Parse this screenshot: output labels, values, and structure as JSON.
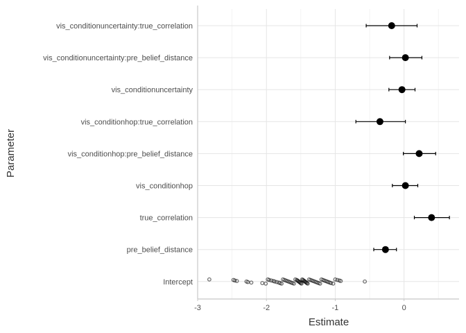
{
  "chart_data": {
    "type": "scatter",
    "subtype": "coefficient-plot-with-error-bars",
    "title": "",
    "xlabel": "Estimate",
    "ylabel": "Parameter",
    "xlim": [
      -3.0,
      0.8
    ],
    "xticks": [
      -3,
      -2,
      -1,
      0
    ],
    "xtick_labels": [
      "-3",
      "-2",
      "-1",
      "0"
    ],
    "grid": true,
    "categories": [
      "vis_conditionuncertainty:true_correlation",
      "vis_conditionuncertainty:pre_belief_distance",
      "vis_conditionuncertainty",
      "vis_conditionhop:true_correlation",
      "vis_conditionhop:pre_belief_distance",
      "vis_conditionhop",
      "true_correlation",
      "pre_belief_distance",
      "Intercept"
    ],
    "estimates": [
      {
        "parameter": "vis_conditionuncertainty:true_correlation",
        "estimate": -0.18,
        "lower": -0.55,
        "upper": 0.19
      },
      {
        "parameter": "vis_conditionuncertainty:pre_belief_distance",
        "estimate": 0.02,
        "lower": -0.21,
        "upper": 0.26
      },
      {
        "parameter": "vis_conditionuncertainty",
        "estimate": -0.03,
        "lower": -0.22,
        "upper": 0.16
      },
      {
        "parameter": "vis_conditionhop:true_correlation",
        "estimate": -0.35,
        "lower": -0.7,
        "upper": 0.02
      },
      {
        "parameter": "vis_conditionhop:pre_belief_distance",
        "estimate": 0.22,
        "lower": -0.01,
        "upper": 0.46
      },
      {
        "parameter": "vis_conditionhop",
        "estimate": 0.02,
        "lower": -0.17,
        "upper": 0.2
      },
      {
        "parameter": "true_correlation",
        "estimate": 0.4,
        "lower": 0.15,
        "upper": 0.66
      },
      {
        "parameter": "pre_belief_distance",
        "estimate": -0.27,
        "lower": -0.44,
        "upper": -0.11
      }
    ],
    "intercept_draws": [
      -2.83,
      -2.48,
      -2.46,
      -2.43,
      -2.29,
      -2.27,
      -2.22,
      -2.06,
      -2.01,
      -1.98,
      -1.96,
      -1.93,
      -1.9,
      -1.88,
      -1.85,
      -1.82,
      -1.8,
      -1.78,
      -1.76,
      -1.74,
      -1.72,
      -1.7,
      -1.68,
      -1.66,
      -1.64,
      -1.62,
      -1.6,
      -1.58,
      -1.56,
      -1.55,
      -1.54,
      -1.53,
      -1.52,
      -1.51,
      -1.5,
      -1.49,
      -1.48,
      -1.47,
      -1.46,
      -1.45,
      -1.44,
      -1.43,
      -1.42,
      -1.41,
      -1.4,
      -1.38,
      -1.36,
      -1.34,
      -1.32,
      -1.3,
      -1.28,
      -1.26,
      -1.24,
      -1.22,
      -1.2,
      -1.18,
      -1.16,
      -1.14,
      -1.12,
      -1.1,
      -1.08,
      -1.06,
      -1.03,
      -1.0,
      -0.97,
      -0.94,
      -0.92,
      -0.57
    ]
  }
}
